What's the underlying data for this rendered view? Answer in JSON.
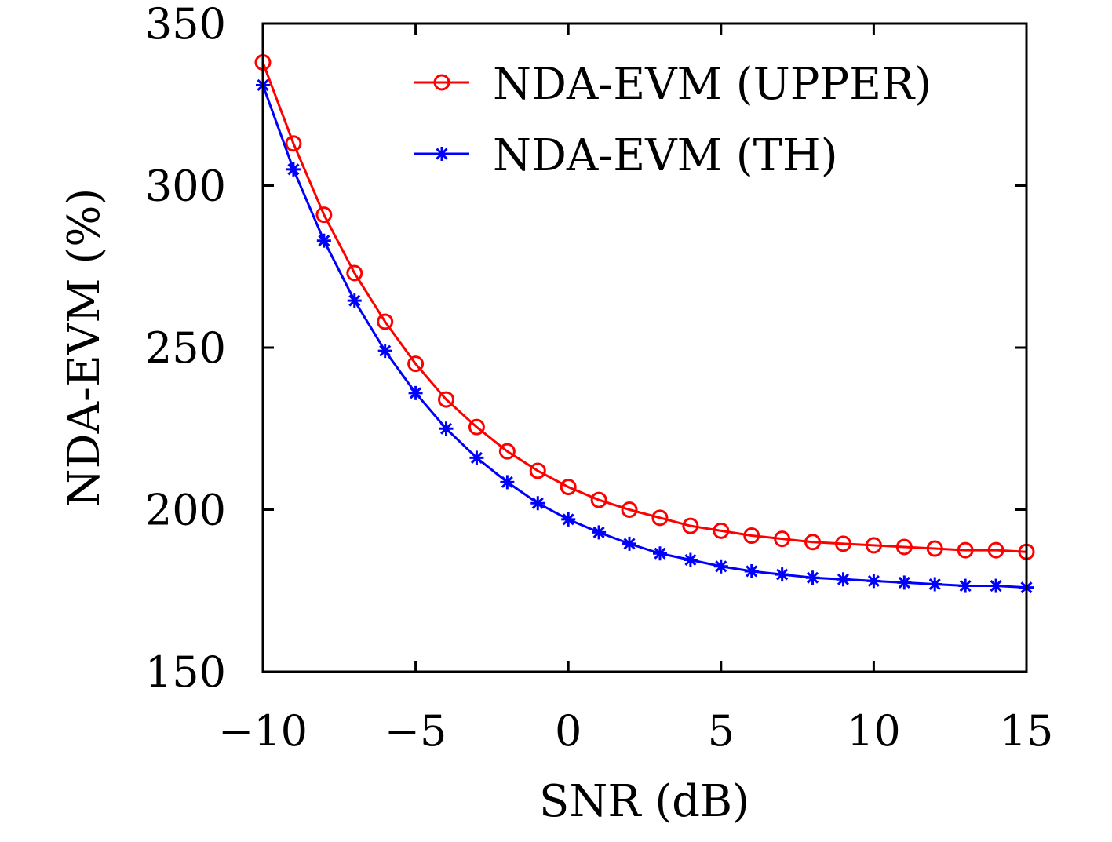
{
  "chart_data": {
    "type": "line",
    "title": "",
    "xlabel": "SNR (dB)",
    "ylabel": "NDA-EVM (%)",
    "xlim": [
      -10,
      15
    ],
    "ylim": [
      150,
      350
    ],
    "xticks": [
      -10,
      -5,
      0,
      5,
      10,
      15
    ],
    "xtick_labels": [
      "−10",
      "−5",
      "0",
      "5",
      "10",
      "15"
    ],
    "yticks": [
      150,
      200,
      250,
      300,
      350
    ],
    "ytick_labels": [
      "150",
      "200",
      "250",
      "300",
      "350"
    ],
    "grid": false,
    "legend_position": "top-right",
    "x": [
      -10,
      -9,
      -8,
      -7,
      -6,
      -5,
      -4,
      -3,
      -2,
      -1,
      0,
      1,
      2,
      3,
      4,
      5,
      6,
      7,
      8,
      9,
      10,
      11,
      12,
      13,
      14,
      15
    ],
    "series": [
      {
        "name": "NDA-EVM (UPPER)",
        "color": "#ff0000",
        "marker": "circle",
        "values": [
          338,
          313,
          291,
          273,
          258,
          245,
          234,
          225.5,
          218,
          212,
          207,
          203,
          200,
          197.5,
          195,
          193.5,
          192,
          191,
          190,
          189.5,
          189,
          188.5,
          188,
          187.5,
          187.5,
          187
        ]
      },
      {
        "name": "NDA-EVM (TH)",
        "color": "#0000ff",
        "marker": "asterisk",
        "values": [
          331,
          305,
          283,
          264.5,
          249,
          236,
          225,
          216,
          208.5,
          202,
          197,
          193,
          189.5,
          186.5,
          184.5,
          182.5,
          181,
          180,
          179,
          178.5,
          178,
          177.5,
          177,
          176.5,
          176.5,
          176
        ]
      }
    ]
  }
}
